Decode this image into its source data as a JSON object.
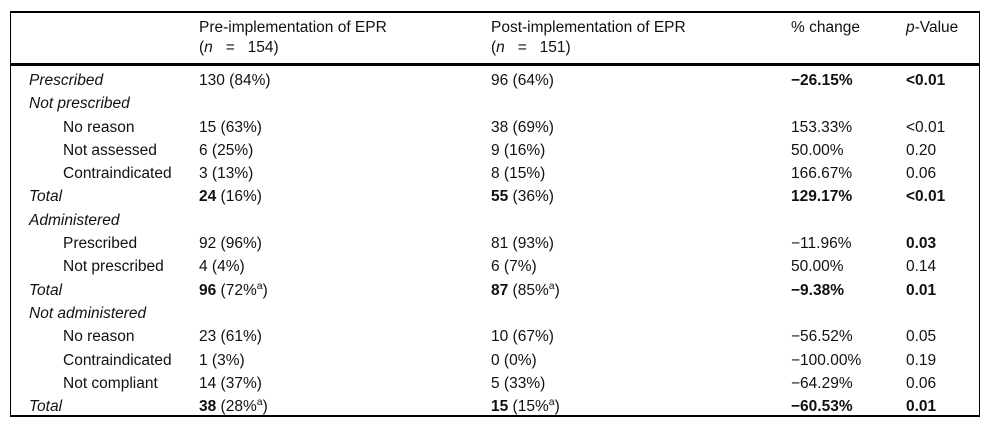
{
  "colors": {
    "background": "#ffffff",
    "text": "#111111",
    "rule": "#000000"
  },
  "table": {
    "header": {
      "label_col": "",
      "pre": {
        "title": "Pre-implementation of EPR",
        "n_open": "(",
        "n_italic": "n",
        "n_rest": "   =   154)"
      },
      "post": {
        "title": "Post-implementation of EPR",
        "n_open": "(",
        "n_italic": "n",
        "n_rest": "   =   151)"
      },
      "change": "% change",
      "p_italic": "p",
      "p_rest": "-Value"
    },
    "rows": [
      {
        "label": "Prescribed",
        "italic": true,
        "indent": false,
        "pre_b": "",
        "pre_t": "130 (84%)",
        "pre_sup": "",
        "pre_t2": "",
        "post_b": "",
        "post_t": "96 (64%)",
        "post_sup": "",
        "post_t2": "",
        "change": "−26.15%",
        "change_bold": true,
        "p": "<0.01",
        "p_bold": true
      },
      {
        "label": "Not prescribed",
        "italic": true,
        "indent": false,
        "pre_b": "",
        "pre_t": "",
        "pre_sup": "",
        "pre_t2": "",
        "post_b": "",
        "post_t": "",
        "post_sup": "",
        "post_t2": "",
        "change": "",
        "change_bold": false,
        "p": "",
        "p_bold": false
      },
      {
        "label": "No reason",
        "italic": false,
        "indent": true,
        "pre_b": "",
        "pre_t": "15 (63%)",
        "pre_sup": "",
        "pre_t2": "",
        "post_b": "",
        "post_t": "38 (69%)",
        "post_sup": "",
        "post_t2": "",
        "change": "153.33%",
        "change_bold": false,
        "p": "<0.01",
        "p_bold": false
      },
      {
        "label": "Not assessed",
        "italic": false,
        "indent": true,
        "pre_b": "",
        "pre_t": "6 (25%)",
        "pre_sup": "",
        "pre_t2": "",
        "post_b": "",
        "post_t": "9 (16%)",
        "post_sup": "",
        "post_t2": "",
        "change": "50.00%",
        "change_bold": false,
        "p": "0.20",
        "p_bold": false
      },
      {
        "label": "Contraindicated",
        "italic": false,
        "indent": true,
        "pre_b": "",
        "pre_t": "3 (13%)",
        "pre_sup": "",
        "pre_t2": "",
        "post_b": "",
        "post_t": "8 (15%)",
        "post_sup": "",
        "post_t2": "",
        "change": "166.67%",
        "change_bold": false,
        "p": "0.06",
        "p_bold": false
      },
      {
        "label": "Total",
        "italic": true,
        "indent": false,
        "pre_b": "24",
        "pre_t": " (16%)",
        "pre_sup": "",
        "pre_t2": "",
        "post_b": "55",
        "post_t": " (36%)",
        "post_sup": "",
        "post_t2": "",
        "change": "129.17%",
        "change_bold": true,
        "p": "<0.01",
        "p_bold": true
      },
      {
        "label": "Administered",
        "italic": true,
        "indent": false,
        "pre_b": "",
        "pre_t": "",
        "pre_sup": "",
        "pre_t2": "",
        "post_b": "",
        "post_t": "",
        "post_sup": "",
        "post_t2": "",
        "change": "",
        "change_bold": false,
        "p": "",
        "p_bold": false
      },
      {
        "label": "Prescribed",
        "italic": false,
        "indent": true,
        "pre_b": "",
        "pre_t": "92 (96%)",
        "pre_sup": "",
        "pre_t2": "",
        "post_b": "",
        "post_t": "81 (93%)",
        "post_sup": "",
        "post_t2": "",
        "change": "−11.96%",
        "change_bold": false,
        "p": "0.03",
        "p_bold": true
      },
      {
        "label": "Not prescribed",
        "italic": false,
        "indent": true,
        "pre_b": "",
        "pre_t": "4 (4%)",
        "pre_sup": "",
        "pre_t2": "",
        "post_b": "",
        "post_t": "6 (7%)",
        "post_sup": "",
        "post_t2": "",
        "change": "50.00%",
        "change_bold": false,
        "p": "0.14",
        "p_bold": false
      },
      {
        "label": "Total",
        "italic": true,
        "indent": false,
        "pre_b": "96",
        "pre_t": " (72%",
        "pre_sup": "a",
        "pre_t2": ")",
        "post_b": "87",
        "post_t": " (85%",
        "post_sup": "a",
        "post_t2": ")",
        "change": "−9.38%",
        "change_bold": true,
        "p": "0.01",
        "p_bold": true
      },
      {
        "label": "Not administered",
        "italic": true,
        "indent": false,
        "pre_b": "",
        "pre_t": "",
        "pre_sup": "",
        "pre_t2": "",
        "post_b": "",
        "post_t": "",
        "post_sup": "",
        "post_t2": "",
        "change": "",
        "change_bold": false,
        "p": "",
        "p_bold": false
      },
      {
        "label": "No reason",
        "italic": false,
        "indent": true,
        "pre_b": "",
        "pre_t": "23 (61%)",
        "pre_sup": "",
        "pre_t2": "",
        "post_b": "",
        "post_t": "10 (67%)",
        "post_sup": "",
        "post_t2": "",
        "change": "−56.52%",
        "change_bold": false,
        "p": "0.05",
        "p_bold": false
      },
      {
        "label": "Contraindicated",
        "italic": false,
        "indent": true,
        "pre_b": "",
        "pre_t": "1 (3%)",
        "pre_sup": "",
        "pre_t2": "",
        "post_b": "",
        "post_t": "0 (0%)",
        "post_sup": "",
        "post_t2": "",
        "change": "−100.00%",
        "change_bold": false,
        "p": "0.19",
        "p_bold": false
      },
      {
        "label": "Not compliant",
        "italic": false,
        "indent": true,
        "pre_b": "",
        "pre_t": "14 (37%)",
        "pre_sup": "",
        "pre_t2": "",
        "post_b": "",
        "post_t": "5 (33%)",
        "post_sup": "",
        "post_t2": "",
        "change": "−64.29%",
        "change_bold": false,
        "p": "0.06",
        "p_bold": false
      },
      {
        "label": "Total",
        "italic": true,
        "indent": false,
        "pre_b": "38",
        "pre_t": " (28%",
        "pre_sup": "a",
        "pre_t2": ")",
        "post_b": "15",
        "post_t": " (15%",
        "post_sup": "a",
        "post_t2": ")",
        "change": "−60.53%",
        "change_bold": true,
        "p": "0.01",
        "p_bold": true
      }
    ]
  }
}
